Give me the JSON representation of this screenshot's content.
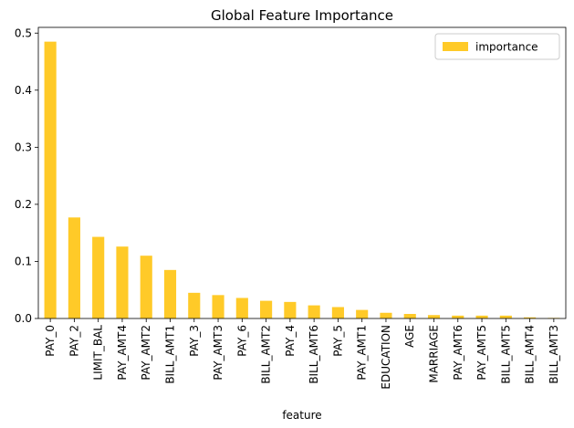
{
  "chart_data": {
    "type": "bar",
    "title": "Global Feature Importance",
    "xlabel": "feature",
    "ylabel": "",
    "ylim": [
      0,
      0.51
    ],
    "yticks": [
      0.0,
      0.1,
      0.2,
      0.3,
      0.4,
      0.5
    ],
    "ytick_labels": [
      "0.0",
      "0.1",
      "0.2",
      "0.3",
      "0.4",
      "0.5"
    ],
    "categories": [
      "PAY_0",
      "PAY_2",
      "LIMIT_BAL",
      "PAY_AMT4",
      "PAY_AMT2",
      "BILL_AMT1",
      "PAY_3",
      "PAY_AMT3",
      "PAY_6",
      "BILL_AMT2",
      "PAY_4",
      "BILL_AMT6",
      "PAY_5",
      "PAY_AMT1",
      "EDUCATION",
      "AGE",
      "MARRIAGE",
      "PAY_AMT6",
      "PAY_AMT5",
      "BILL_AMT5",
      "BILL_AMT4",
      "BILL_AMT3"
    ],
    "series": [
      {
        "name": "importance",
        "color": "#ffca28",
        "values": [
          0.485,
          0.177,
          0.143,
          0.126,
          0.11,
          0.085,
          0.045,
          0.041,
          0.036,
          0.031,
          0.029,
          0.023,
          0.02,
          0.015,
          0.01,
          0.008,
          0.006,
          0.005,
          0.005,
          0.005,
          0.002,
          0.001
        ]
      }
    ],
    "legend_position": "top-right",
    "grid": false
  }
}
